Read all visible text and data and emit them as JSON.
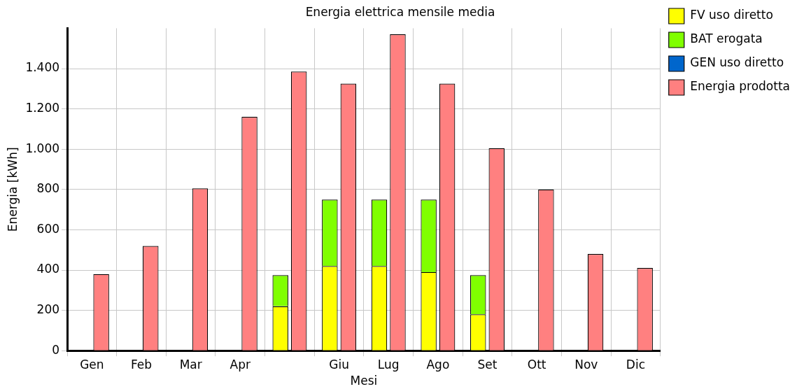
{
  "chart_data": {
    "type": "bar",
    "title": "Energia elettrica mensile media",
    "xlabel": "Mesi",
    "ylabel": "Energia [kWh]",
    "categories": [
      "Gen",
      "Feb",
      "Mar",
      "Apr",
      null,
      "Giu",
      "Lug",
      "Ago",
      "Set",
      "Ott",
      "Nov",
      "Dic"
    ],
    "series": [
      {
        "name": "FV uso diretto",
        "color": "#ffff00",
        "values": [
          0,
          0,
          0,
          0,
          220,
          420,
          420,
          390,
          180,
          0,
          0,
          0
        ]
      },
      {
        "name": "BAT erogata",
        "color": "#80ff00",
        "values": [
          0,
          0,
          0,
          0,
          155,
          330,
          330,
          360,
          195,
          0,
          0,
          0
        ],
        "base": [
          null,
          null,
          null,
          null,
          220,
          420,
          420,
          390,
          180,
          null,
          null,
          null
        ]
      },
      {
        "name": "GEN uso diretto",
        "color": "#0066cc",
        "values": [
          0,
          0,
          0,
          0,
          0,
          0,
          0,
          0,
          0,
          0,
          0,
          0
        ]
      },
      {
        "name": "Energia prodotta",
        "color": "#ff8080",
        "values": [
          380,
          520,
          805,
          1160,
          1385,
          1325,
          1570,
          1325,
          1005,
          800,
          480,
          410
        ]
      }
    ],
    "ylim": [
      0,
      1600
    ],
    "yticks": [
      0,
      200,
      400,
      600,
      800,
      {
        "value": 1000,
        "label": "1.000"
      },
      {
        "value": 1200,
        "label": "1.200"
      },
      {
        "value": 1400,
        "label": "1.400"
      }
    ],
    "grid": true,
    "legend": "right"
  }
}
